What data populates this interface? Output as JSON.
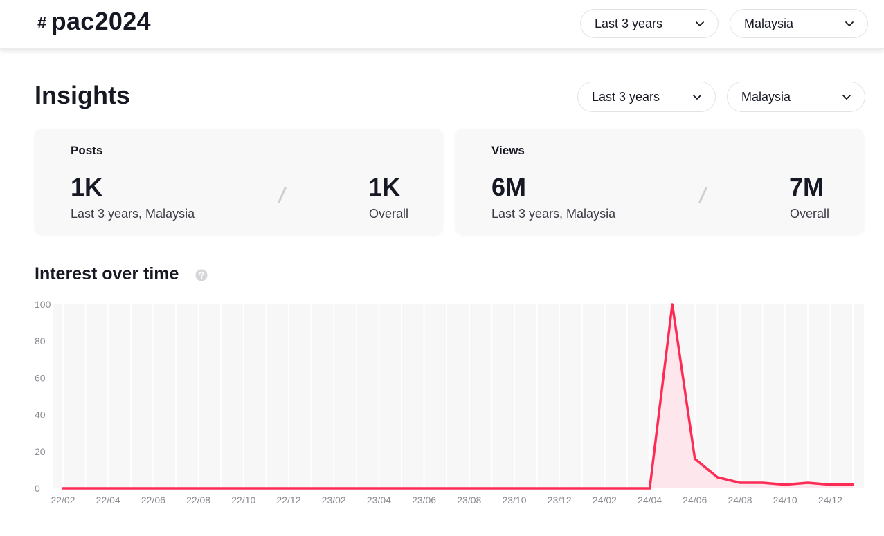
{
  "header": {
    "hash_symbol": "#",
    "hashtag": "pac2024",
    "period_filter": "Last 3 years",
    "region_filter": "Malaysia"
  },
  "insights": {
    "title": "Insights",
    "period_filter": "Last 3 years",
    "region_filter": "Malaysia",
    "posts": {
      "label": "Posts",
      "value": "1K",
      "caption": "Last 3 years, Malaysia",
      "overall_value": "1K",
      "overall_caption": "Overall"
    },
    "views": {
      "label": "Views",
      "value": "6M",
      "caption": "Last 3 years, Malaysia",
      "overall_value": "7M",
      "overall_caption": "Overall"
    }
  },
  "interest": {
    "title": "Interest over time",
    "help_icon": "question-circle-icon"
  },
  "colors": {
    "accent": "#fe2c55",
    "area_fill": "#fde4ea",
    "plot_background": "#f7f7f8",
    "axis_text": "#8a8b91"
  },
  "chart_data": {
    "type": "area",
    "ylim": [
      0,
      100
    ],
    "y_ticks": [
      "0",
      "20",
      "40",
      "60",
      "80",
      "100"
    ],
    "x_ticks": [
      "22/02",
      "22/04",
      "22/06",
      "22/08",
      "22/10",
      "22/12",
      "23/02",
      "23/04",
      "23/06",
      "23/08",
      "23/10",
      "23/12",
      "24/02",
      "24/04",
      "24/06",
      "24/08",
      "24/10",
      "24/12"
    ],
    "x": [
      "22/02",
      "22/03",
      "22/04",
      "22/05",
      "22/06",
      "22/07",
      "22/08",
      "22/09",
      "22/10",
      "22/11",
      "22/12",
      "23/01",
      "23/02",
      "23/03",
      "23/04",
      "23/05",
      "23/06",
      "23/07",
      "23/08",
      "23/09",
      "23/10",
      "23/11",
      "23/12",
      "24/01",
      "24/02",
      "24/03",
      "24/04",
      "24/05",
      "24/06",
      "24/07",
      "24/08",
      "24/09",
      "24/10",
      "24/11",
      "24/12",
      "25/01"
    ],
    "series": [
      {
        "values": [
          0,
          0,
          0,
          0,
          0,
          0,
          0,
          0,
          0,
          0,
          0,
          0,
          0,
          0,
          0,
          0,
          0,
          0,
          0,
          0,
          0,
          0,
          0,
          0,
          0,
          0,
          0,
          100,
          16,
          6,
          3,
          3,
          2,
          3,
          2,
          2
        ]
      }
    ],
    "grid": true
  }
}
